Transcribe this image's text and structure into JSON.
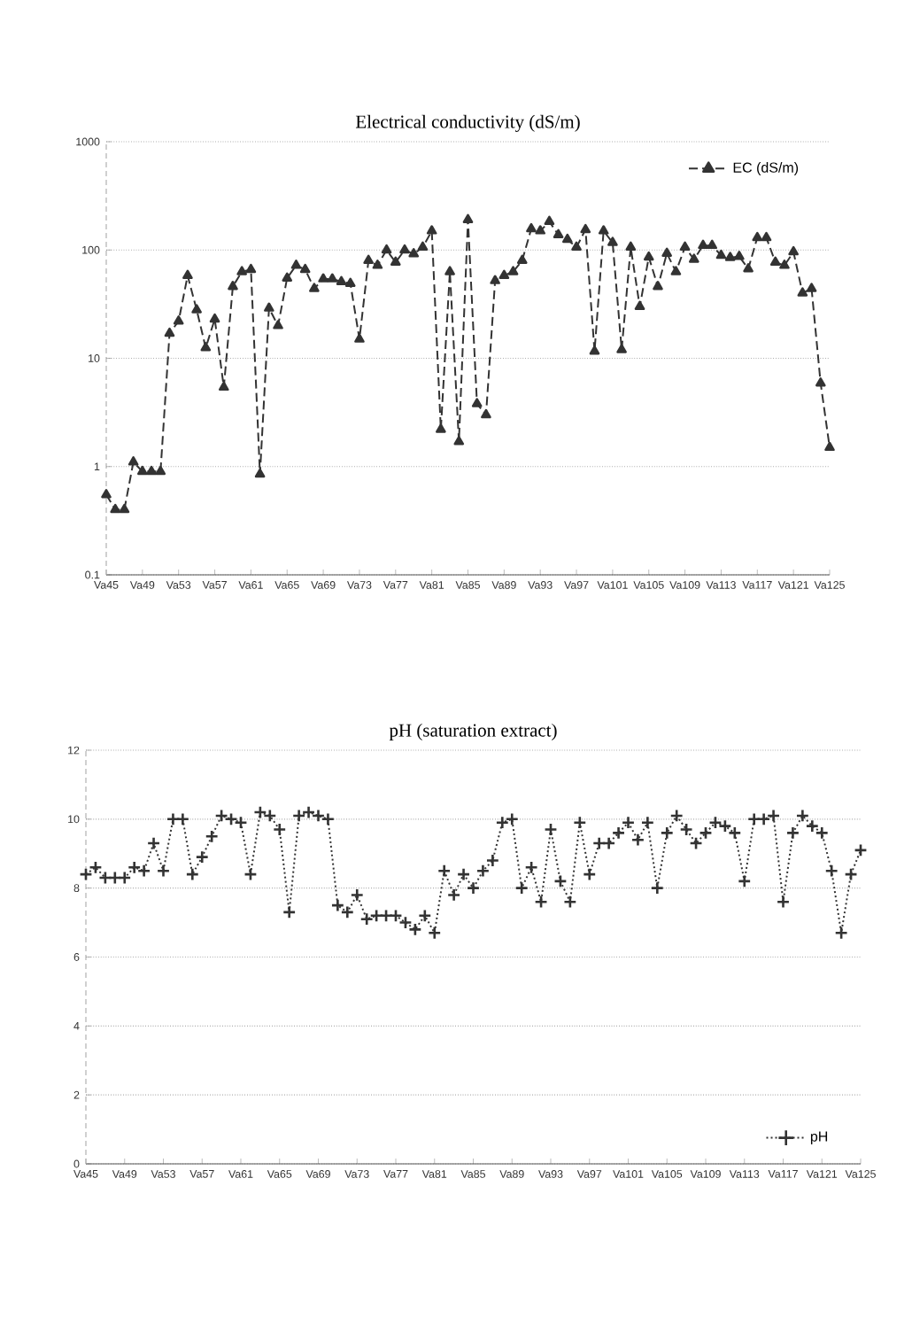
{
  "chart_data": [
    {
      "type": "line",
      "title": "Electrical conductivity (dS/m)",
      "categories": [
        "Va45",
        null,
        null,
        null,
        "Va49",
        null,
        null,
        null,
        "Va53",
        null,
        null,
        null,
        "Va57",
        null,
        null,
        null,
        "Va61",
        null,
        null,
        null,
        "Va65",
        null,
        null,
        null,
        "Va69",
        null,
        null,
        null,
        "Va73",
        null,
        null,
        null,
        "Va77",
        null,
        null,
        null,
        "Va81",
        null,
        null,
        null,
        "Va85",
        null,
        null,
        null,
        "Va89",
        null,
        null,
        null,
        "Va93",
        null,
        null,
        null,
        "Va97",
        null,
        null,
        null,
        "Va101",
        null,
        null,
        null,
        "Va105",
        null,
        null,
        null,
        "Va109",
        null,
        null,
        null,
        "Va113",
        null,
        null,
        null,
        "Va117",
        null,
        null,
        null,
        "Va121",
        null,
        null,
        null,
        "Va125"
      ],
      "series": [
        {
          "name": "EC (dS/m)",
          "color": "#333333",
          "values": [
            0.55,
            0.4,
            0.4,
            1.1,
            0.9,
            0.9,
            0.9,
            17,
            22,
            58,
            28,
            12.5,
            23,
            5.4,
            46,
            63,
            66,
            0.85,
            29,
            20,
            55,
            72,
            66,
            44,
            54,
            54,
            51,
            49,
            15,
            80,
            72,
            100,
            77,
            100,
            92,
            106,
            150,
            2.2,
            63,
            1.7,
            190,
            3.8,
            3.0,
            52,
            58,
            63,
            80,
            157,
            150,
            183,
            138,
            125,
            106,
            154,
            11.6,
            150,
            117,
            12,
            106,
            30,
            86,
            46,
            93,
            63,
            106,
            82,
            110,
            110,
            89,
            85,
            87,
            67,
            130,
            130,
            77,
            72,
            96,
            40,
            44,
            5.9,
            1.5
          ]
        }
      ],
      "log": "y",
      "ylim": [
        0.1,
        1000
      ],
      "yticks": [
        0.1,
        1,
        10,
        100,
        1000
      ],
      "grid": "y",
      "legend": "top right",
      "marker": "triangle",
      "line_style": "dashed"
    },
    {
      "type": "line",
      "title": "pH (saturation extract)",
      "categories": [
        "Va45",
        null,
        null,
        null,
        "Va49",
        null,
        null,
        null,
        "Va53",
        null,
        null,
        null,
        "Va57",
        null,
        null,
        null,
        "Va61",
        null,
        null,
        null,
        "Va65",
        null,
        null,
        null,
        "Va69",
        null,
        null,
        null,
        "Va73",
        null,
        null,
        null,
        "Va77",
        null,
        null,
        null,
        "Va81",
        null,
        null,
        null,
        "Va85",
        null,
        null,
        null,
        "Va89",
        null,
        null,
        null,
        "Va93",
        null,
        null,
        null,
        "Va97",
        null,
        null,
        null,
        "Va101",
        null,
        null,
        null,
        "Va105",
        null,
        null,
        null,
        "Va109",
        null,
        null,
        null,
        "Va113",
        null,
        null,
        null,
        "Va117",
        null,
        null,
        null,
        "Va121",
        null,
        null,
        null,
        "Va125"
      ],
      "series": [
        {
          "name": "pH",
          "color": "#333333",
          "values": [
            8.4,
            8.6,
            8.3,
            8.3,
            8.3,
            8.6,
            8.5,
            9.3,
            8.5,
            10.0,
            10.0,
            8.4,
            8.9,
            9.5,
            10.1,
            10.0,
            9.9,
            8.4,
            10.2,
            10.1,
            9.7,
            7.3,
            10.1,
            10.2,
            10.1,
            10.0,
            7.5,
            7.3,
            7.8,
            7.1,
            7.2,
            7.2,
            7.2,
            7.0,
            6.8,
            7.2,
            6.7,
            8.5,
            7.8,
            8.4,
            8.0,
            8.5,
            8.8,
            9.9,
            10.0,
            8.0,
            8.6,
            7.6,
            9.7,
            8.2,
            7.6,
            9.9,
            8.4,
            9.3,
            9.3,
            9.6,
            9.9,
            9.4,
            9.9,
            8.0,
            9.6,
            10.1,
            9.7,
            9.3,
            9.6,
            9.9,
            9.8,
            9.6,
            8.2,
            10.0,
            10.0,
            10.1,
            7.6,
            9.6,
            10.1,
            9.8,
            9.6,
            8.5,
            6.7,
            8.4,
            9.1
          ]
        }
      ],
      "ylim": [
        0,
        12
      ],
      "yticks": [
        0,
        2,
        4,
        6,
        8,
        10,
        12
      ],
      "grid": "y",
      "legend": "bottom right",
      "marker": "cross",
      "line_style": "dotted"
    }
  ]
}
